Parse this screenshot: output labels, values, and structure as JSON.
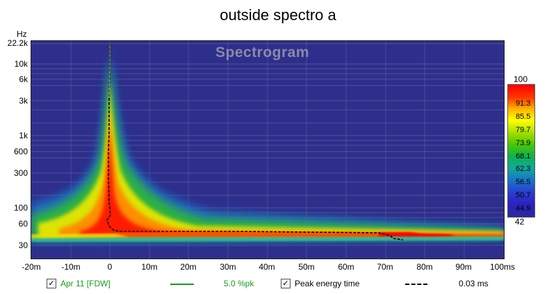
{
  "title": "outside spectro a",
  "watermark": "Spectrogram",
  "y_axis": {
    "unit": "Hz",
    "ticks": [
      "22.2k",
      "10k",
      "6k",
      "3k",
      "1k",
      "600",
      "300",
      "100",
      "60",
      "30"
    ]
  },
  "x_axis": {
    "ticks": [
      "-20m",
      "-10m",
      "0",
      "10m",
      "20m",
      "30m",
      "40m",
      "50m",
      "60m",
      "70m",
      "80m",
      "90m",
      "100ms"
    ]
  },
  "color_scale": {
    "labels": [
      "100",
      "91.3",
      "85.5",
      "79.7",
      "73.9",
      "68.1",
      "62.3",
      "56.5",
      "50.7",
      "44.9",
      "42"
    ]
  },
  "legend": {
    "trace1_label": "Apr 11 [FDW]",
    "trace1_checked": true,
    "trace1_color": "#1a9a1a",
    "trace1_value": "5.0 %pk",
    "trace2_label": "Peak energy time",
    "trace2_checked": true,
    "trace2_value": "0.03 ms"
  },
  "colors": {
    "background": "#2e2e8c",
    "peak_line": "#000000"
  }
}
